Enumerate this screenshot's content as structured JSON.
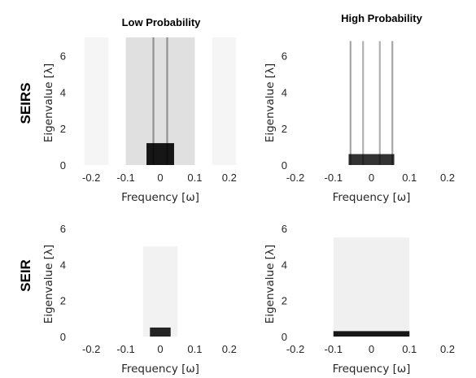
{
  "column_titles": [
    "Low Probability",
    "High Probability"
  ],
  "row_labels": [
    "SEIRS",
    "SEIR"
  ],
  "chart_data": [
    {
      "type": "heatmap",
      "row": "SEIRS",
      "column": "Low Probability",
      "xlabel": "Frequency [ω]",
      "ylabel": "Eigenvalue [λ]",
      "xlim": [
        -0.25,
        0.25
      ],
      "ylim": [
        0,
        7
      ],
      "x_ticks": [
        -0.2,
        -0.1,
        0,
        0.1,
        0.2
      ],
      "x_tick_labels": [
        "-0.2",
        "-0.1",
        "0",
        "0.1",
        "0.2"
      ],
      "y_ticks": [
        0,
        2,
        4,
        6
      ],
      "y_tick_labels": [
        "0",
        "2",
        "4",
        "6"
      ],
      "colormap": "gray-reversed",
      "features": [
        {
          "description": "dense band",
          "x_range": [
            -0.1,
            0.1
          ],
          "y_range": [
            0,
            7
          ],
          "intensity": 0.12
        },
        {
          "description": "bright line",
          "x": -0.02,
          "y_range": [
            0,
            7
          ],
          "intensity": 0.35
        },
        {
          "description": "bright line",
          "x": 0.02,
          "y_range": [
            0,
            7
          ],
          "intensity": 0.35
        },
        {
          "description": "concentrated low eigenvalues",
          "x_range": [
            -0.04,
            0.04
          ],
          "y_range": [
            0,
            1.2
          ],
          "intensity": 0.9
        },
        {
          "description": "faint side band",
          "x_range": [
            -0.22,
            -0.15
          ],
          "y_range": [
            0,
            7
          ],
          "intensity": 0.04
        },
        {
          "description": "faint side band",
          "x_range": [
            0.15,
            0.22
          ],
          "y_range": [
            0,
            7
          ],
          "intensity": 0.04
        }
      ]
    },
    {
      "type": "heatmap",
      "row": "SEIRS",
      "column": "High Probability",
      "xlabel": "Frequency [ω]",
      "ylabel": "Eigenvalue [λ]",
      "xlim": [
        -0.2,
        0.2
      ],
      "ylim": [
        0,
        7
      ],
      "x_ticks": [
        -0.2,
        -0.1,
        0,
        0.1,
        0.2
      ],
      "x_tick_labels": [
        "-0.2",
        "-0.1",
        "0",
        "0.1",
        "0.2"
      ],
      "y_ticks": [
        0,
        2,
        4,
        6
      ],
      "y_tick_labels": [
        "0",
        "2",
        "4",
        "6"
      ],
      "colormap": "gray-reversed",
      "features": [
        {
          "description": "bright line",
          "x": -0.055,
          "y_range": [
            0,
            6.8
          ],
          "intensity": 0.35
        },
        {
          "description": "bright line",
          "x": -0.022,
          "y_range": [
            0,
            6.8
          ],
          "intensity": 0.3
        },
        {
          "description": "bright line",
          "x": 0.022,
          "y_range": [
            0,
            6.8
          ],
          "intensity": 0.3
        },
        {
          "description": "bright line",
          "x": 0.055,
          "y_range": [
            0,
            6.8
          ],
          "intensity": 0.35
        },
        {
          "description": "concentrated low eigenvalues",
          "x_range": [
            -0.06,
            0.06
          ],
          "y_range": [
            0,
            0.6
          ],
          "intensity": 0.8
        }
      ]
    },
    {
      "type": "heatmap",
      "row": "SEIR",
      "column": "Low Probability",
      "xlabel": "Frequency [ω]",
      "ylabel": "Eigenvalue [λ]",
      "xlim": [
        -0.25,
        0.25
      ],
      "ylim": [
        0,
        6
      ],
      "x_ticks": [
        -0.2,
        -0.1,
        0,
        0.1,
        0.2
      ],
      "x_tick_labels": [
        "-0.2",
        "-0.1",
        "0",
        "0.1",
        "0.2"
      ],
      "y_ticks": [
        0,
        2,
        4,
        6
      ],
      "y_tick_labels": [
        "0",
        "2",
        "4",
        "6"
      ],
      "colormap": "gray-reversed",
      "features": [
        {
          "description": "faint band",
          "x_range": [
            -0.05,
            0.05
          ],
          "y_range": [
            0,
            5
          ],
          "intensity": 0.05
        },
        {
          "description": "concentrated low eigenvalues",
          "x_range": [
            -0.03,
            0.03
          ],
          "y_range": [
            0,
            0.5
          ],
          "intensity": 0.85
        }
      ]
    },
    {
      "type": "heatmap",
      "row": "SEIR",
      "column": "High Probability",
      "xlabel": "Frequency [ω]",
      "ylabel": "Eigenvalue [λ]",
      "xlim": [
        -0.2,
        0.2
      ],
      "ylim": [
        0,
        6
      ],
      "x_ticks": [
        -0.2,
        -0.1,
        0,
        0.1,
        0.2
      ],
      "x_tick_labels": [
        "-0.2",
        "-0.1",
        "0",
        "0.1",
        "0.2"
      ],
      "y_ticks": [
        0,
        2,
        4,
        6
      ],
      "y_tick_labels": [
        "0",
        "2",
        "4",
        "6"
      ],
      "colormap": "gray-reversed",
      "features": [
        {
          "description": "faint wide band",
          "x_range": [
            -0.1,
            0.1
          ],
          "y_range": [
            0,
            5.5
          ],
          "intensity": 0.06
        },
        {
          "description": "concentrated low eigenvalues",
          "x_range": [
            -0.1,
            0.1
          ],
          "y_range": [
            0,
            0.3
          ],
          "intensity": 0.9
        }
      ]
    }
  ]
}
